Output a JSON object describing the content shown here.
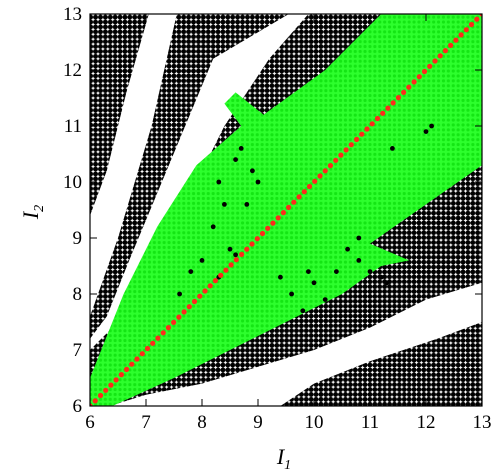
{
  "chart_data": {
    "type": "scatter",
    "title": "",
    "xlabel": "I",
    "xlabel_subscript": "1",
    "ylabel": "I",
    "ylabel_subscript": "2",
    "xlim": [
      6,
      13
    ],
    "ylim": [
      6,
      13
    ],
    "x_ticks": [
      6,
      7,
      8,
      9,
      10,
      11,
      12,
      13
    ],
    "y_ticks": [
      6,
      7,
      8,
      9,
      10,
      11,
      12,
      13
    ],
    "grid": false,
    "legend": "none",
    "grid_step": 0.1,
    "colors": {
      "black_region": "#000000",
      "green_region": "#1aff1a",
      "diagonal": "#ff2a1a",
      "background": "#ffffff"
    },
    "regions": {
      "black": [
        [
          [
            6.0,
            9.4
          ],
          [
            6.0,
            13.0
          ],
          [
            7.05,
            13.0
          ],
          [
            6.65,
            11.6
          ],
          [
            6.3,
            10.2
          ]
        ],
        [
          [
            7.55,
            13.0
          ],
          [
            9.55,
            13.0
          ],
          [
            8.2,
            12.2
          ],
          [
            7.2,
            9.8
          ],
          [
            6.7,
            8.6
          ],
          [
            6.3,
            7.6
          ],
          [
            6.0,
            7.2
          ],
          [
            6.0,
            7.6
          ],
          [
            6.5,
            9.0
          ],
          [
            7.1,
            11.0
          ]
        ],
        [
          [
            9.9,
            13.0
          ],
          [
            13.0,
            13.0
          ],
          [
            13.0,
            8.2
          ],
          [
            12.0,
            7.9
          ],
          [
            11.0,
            7.4
          ],
          [
            10.0,
            7.0
          ],
          [
            9.0,
            6.7
          ],
          [
            8.0,
            6.4
          ],
          [
            7.0,
            6.2
          ],
          [
            6.35,
            6.0
          ],
          [
            6.0,
            6.0
          ],
          [
            6.0,
            7.0
          ],
          [
            6.4,
            7.4
          ],
          [
            7.0,
            8.2
          ],
          [
            7.6,
            9.4
          ],
          [
            8.4,
            11.0
          ],
          [
            9.2,
            12.2
          ]
        ],
        [
          [
            9.4,
            6.0
          ],
          [
            13.0,
            6.0
          ],
          [
            13.0,
            7.5
          ],
          [
            12.2,
            7.2
          ],
          [
            11.0,
            6.8
          ],
          [
            10.0,
            6.4
          ]
        ]
      ],
      "green": [
        [
          [
            6.0,
            6.0
          ],
          [
            6.4,
            6.0
          ],
          [
            7.5,
            6.5
          ],
          [
            8.5,
            7.0
          ],
          [
            9.5,
            7.5
          ],
          [
            10.5,
            8.0
          ],
          [
            11.2,
            8.5
          ],
          [
            11.7,
            8.6
          ],
          [
            11.0,
            8.9
          ],
          [
            12.0,
            9.6
          ],
          [
            13.0,
            10.3
          ],
          [
            13.0,
            13.0
          ],
          [
            11.2,
            13.0
          ],
          [
            10.2,
            12.0
          ],
          [
            9.1,
            11.2
          ],
          [
            8.6,
            11.6
          ],
          [
            8.4,
            11.4
          ],
          [
            8.7,
            11.0
          ],
          [
            7.9,
            10.3
          ],
          [
            7.2,
            9.2
          ],
          [
            6.6,
            8.0
          ],
          [
            6.2,
            7.0
          ],
          [
            6.0,
            6.5
          ]
        ]
      ]
    },
    "diagonal": {
      "from": [
        6,
        6
      ],
      "to": [
        13,
        13
      ]
    }
  }
}
